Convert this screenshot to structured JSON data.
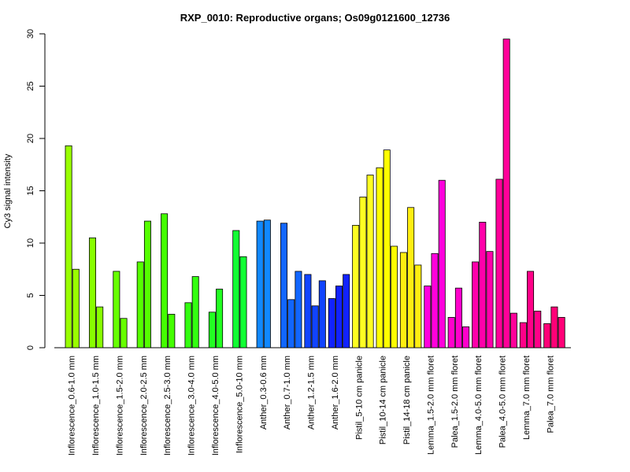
{
  "chart_data": {
    "type": "bar",
    "title": "RXP_0010: Reproductive organs; Os09g0121600_12736",
    "xlabel": "",
    "ylabel": "Cy3 signal intensity",
    "ylim": [
      0,
      30
    ],
    "yticks": [
      "0",
      "5",
      "10",
      "15",
      "20",
      "25",
      "30"
    ],
    "grid": false,
    "legend": "none",
    "groups": [
      {
        "label": "Inflorescence_0.6-1.0 mm",
        "color": "#99ff00",
        "values": [
          19.3,
          7.5
        ]
      },
      {
        "label": "Inflorescence_1.0-1.5 mm",
        "color": "#88ff00",
        "values": [
          10.5,
          3.9
        ]
      },
      {
        "label": "Inflorescence_1.5-2.0 mm",
        "color": "#66ff00",
        "values": [
          7.3,
          2.8
        ]
      },
      {
        "label": "Inflorescence_2.0-2.5 mm",
        "color": "#55ff00",
        "values": [
          8.2,
          12.1
        ]
      },
      {
        "label": "Inflorescence_2.5-3.0 mm",
        "color": "#44ff00",
        "values": [
          12.8,
          3.2
        ]
      },
      {
        "label": "Inflorescence_3.0-4.0 mm",
        "color": "#33ff11",
        "values": [
          4.3,
          6.8
        ]
      },
      {
        "label": "Inflorescence_4.0-5.0 mm",
        "color": "#22ff22",
        "values": [
          3.4,
          5.6
        ]
      },
      {
        "label": "Inflorescence_5.0-10 mm",
        "color": "#11ff33",
        "values": [
          11.2,
          8.7
        ]
      },
      {
        "label": "Anther_0.3-0.6 mm",
        "color": "#1188ff",
        "values": [
          12.1,
          12.2
        ]
      },
      {
        "label": "Anther_0.7-1.0 mm",
        "color": "#1166ff",
        "values": [
          11.9,
          4.6,
          7.3
        ]
      },
      {
        "label": "Anther_1.2-1.5 mm",
        "color": "#1144ff",
        "values": [
          7.0,
          4.0,
          6.4
        ]
      },
      {
        "label": "Anther_1.6-2.0 mm",
        "color": "#1122ff",
        "values": [
          4.7,
          5.9,
          7.0
        ]
      },
      {
        "label": "Pistil_5-10 cm panicle",
        "color": "#ffff22",
        "values": [
          11.7,
          14.4,
          16.5
        ]
      },
      {
        "label": "Pistil_10-14 cm panicle",
        "color": "#ffff00",
        "values": [
          17.2,
          18.9,
          9.7
        ]
      },
      {
        "label": "Pistil_14-18 cm panicle",
        "color": "#ffee11",
        "values": [
          9.1,
          13.4,
          7.9
        ]
      },
      {
        "label": "Lemma_1.5-2.0 mm floret",
        "color": "#ff00dd",
        "values": [
          5.9,
          9.0,
          16.0
        ]
      },
      {
        "label": "Palea_1.5-2.0 mm floret",
        "color": "#ff00cc",
        "values": [
          2.9,
          5.7,
          2.0
        ]
      },
      {
        "label": "Lemma_4.0-5.0 mm floret",
        "color": "#ff00aa",
        "values": [
          8.2,
          12.0,
          9.2
        ]
      },
      {
        "label": "Palea_4.0-5.0 mm floret",
        "color": "#ff0099",
        "values": [
          16.1,
          29.5,
          3.3
        ]
      },
      {
        "label": "Lemma_7.0 mm floret",
        "color": "#ff0088",
        "values": [
          2.4,
          7.3,
          3.5
        ]
      },
      {
        "label": "Palea_7.0 mm floret",
        "color": "#ff0077",
        "values": [
          2.3,
          3.9,
          2.9
        ]
      }
    ]
  }
}
